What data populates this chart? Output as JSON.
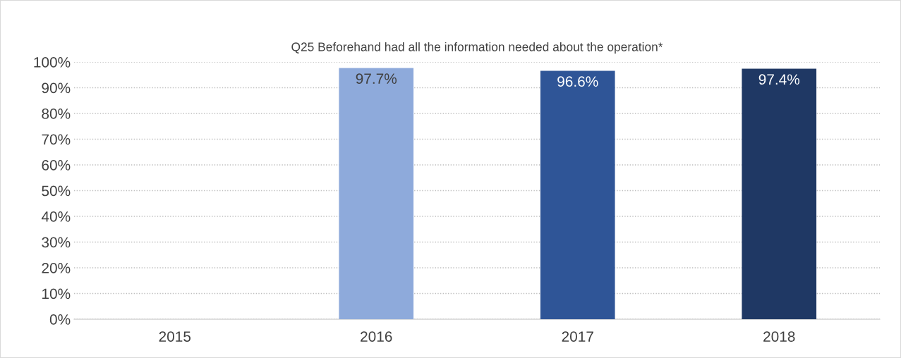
{
  "chart_data": {
    "type": "bar",
    "title": "Q25 Beforehand had all the information needed about the operation*",
    "categories": [
      "2015",
      "2016",
      "2017",
      "2018"
    ],
    "values": [
      null,
      97.7,
      96.6,
      97.4
    ],
    "colors": [
      "#8eaadb",
      "#8eaadb",
      "#2f5597",
      "#1f3864"
    ],
    "value_labels": [
      null,
      "97.7%",
      "96.6%",
      "97.4%"
    ],
    "ylim": [
      0,
      100
    ],
    "yticks": [
      {
        "value": 0,
        "label": "0%"
      },
      {
        "value": 10,
        "label": "10%"
      },
      {
        "value": 20,
        "label": "20%"
      },
      {
        "value": 30,
        "label": "30%"
      },
      {
        "value": 40,
        "label": "40%"
      },
      {
        "value": 50,
        "label": "50%"
      },
      {
        "value": 60,
        "label": "60%"
      },
      {
        "value": 70,
        "label": "70%"
      },
      {
        "value": 80,
        "label": "80%"
      },
      {
        "value": 90,
        "label": "90%"
      },
      {
        "value": 100,
        "label": "100%"
      }
    ],
    "grid": "y"
  }
}
